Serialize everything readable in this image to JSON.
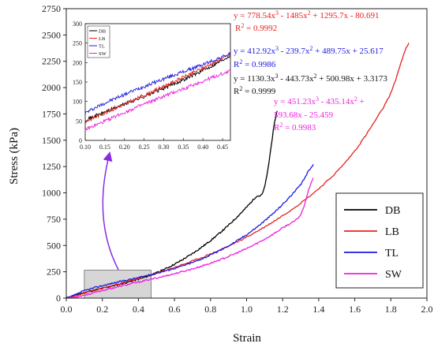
{
  "chart_data": {
    "type": "line",
    "xlabel": "Strain",
    "ylabel": "Stress (kPa)",
    "xlim": [
      0,
      2.0
    ],
    "ylim": [
      0,
      2750
    ],
    "xticks": [
      "0.0",
      "0.2",
      "0.4",
      "0.6",
      "0.8",
      "1.0",
      "1.2",
      "1.4",
      "1.6",
      "1.8",
      "2.0"
    ],
    "yticks": [
      "0",
      "250",
      "500",
      "750",
      "1000",
      "1250",
      "1500",
      "1750",
      "2000",
      "2250",
      "2500",
      "2750"
    ],
    "legend_position": "bottom-right",
    "series": [
      {
        "name": "DB",
        "color": "#000000",
        "xmax": 1.17,
        "x": [
          0.0,
          0.05,
          0.1,
          0.15,
          0.2,
          0.25,
          0.3,
          0.35,
          0.4,
          0.45,
          0.5,
          0.55,
          0.6,
          0.65,
          0.7,
          0.75,
          0.8,
          0.85,
          0.9,
          0.95,
          1.0,
          1.05,
          1.1,
          1.17
        ],
        "y": [
          0,
          28,
          52,
          73,
          93,
          113,
          134,
          156,
          180,
          207,
          240,
          279,
          322,
          371,
          424,
          483,
          547,
          617,
          693,
          776,
          864,
          960,
          1062,
          1780
        ]
      },
      {
        "name": "LB",
        "color": "#e8211f",
        "xmax": 1.9,
        "x": [
          0.0,
          0.1,
          0.2,
          0.3,
          0.4,
          0.5,
          0.6,
          0.7,
          0.8,
          0.9,
          1.0,
          1.1,
          1.2,
          1.3,
          1.4,
          1.5,
          1.6,
          1.7,
          1.8,
          1.9
        ],
        "y": [
          0,
          48,
          93,
          139,
          186,
          237,
          292,
          352,
          419,
          495,
          580,
          676,
          784,
          904,
          1040,
          1200,
          1400,
          1650,
          1950,
          2420
        ]
      },
      {
        "name": "TL",
        "color": "#1a1adf",
        "xmax": 1.37,
        "x": [
          0.0,
          0.1,
          0.2,
          0.3,
          0.4,
          0.5,
          0.6,
          0.7,
          0.8,
          0.9,
          1.0,
          1.1,
          1.2,
          1.3,
          1.37
        ],
        "y": [
          0,
          70,
          118,
          158,
          195,
          236,
          283,
          339,
          410,
          497,
          604,
          734,
          891,
          1076,
          1265
        ]
      },
      {
        "name": "SW",
        "color": "#ee1fdf",
        "xmax": 1.37,
        "x": [
          0.0,
          0.1,
          0.2,
          0.3,
          0.4,
          0.5,
          0.6,
          0.7,
          0.8,
          0.9,
          1.0,
          1.1,
          1.2,
          1.3,
          1.37
        ],
        "y": [
          0,
          28,
          72,
          113,
          152,
          191,
          232,
          278,
          332,
          396,
          471,
          560,
          667,
          792,
          1140
        ]
      }
    ],
    "equations": [
      {
        "text": "y = 778.54x³ - 1485x² + 1295.7x - 80.691",
        "r2": "R² = 0.9992",
        "color": "#e8211f"
      },
      {
        "text": "y = 412.92x³ - 239.7x² + 489.75x + 25.617",
        "r2": "R² = 0.9986",
        "color": "#1a1adf"
      },
      {
        "text": "y = 1130.3x³ - 443.73x² + 500.98x + 3.3173",
        "r2": "R² = 0.9999",
        "color": "#111111"
      },
      {
        "text1": "y = 451.23x³ - 435.14x² +",
        "text2": "593.68x - 25.459",
        "r2": "R² = 0.9983",
        "color": "#ee1fdf"
      }
    ],
    "highlight_region": {
      "x": [
        0.1,
        0.47
      ],
      "y": [
        0,
        265
      ],
      "fill": "#cccccc"
    },
    "inset": {
      "xlim": [
        0.1,
        0.47
      ],
      "ylim": [
        0,
        300
      ],
      "xticks": [
        "0.10",
        "0.15",
        "0.20",
        "0.25",
        "0.30",
        "0.35",
        "0.40",
        "0.45"
      ],
      "yticks": [
        "0",
        "50",
        "100",
        "150",
        "200",
        "250",
        "300"
      ],
      "legend": [
        "DB",
        "LB",
        "TL",
        "SW"
      ]
    }
  }
}
